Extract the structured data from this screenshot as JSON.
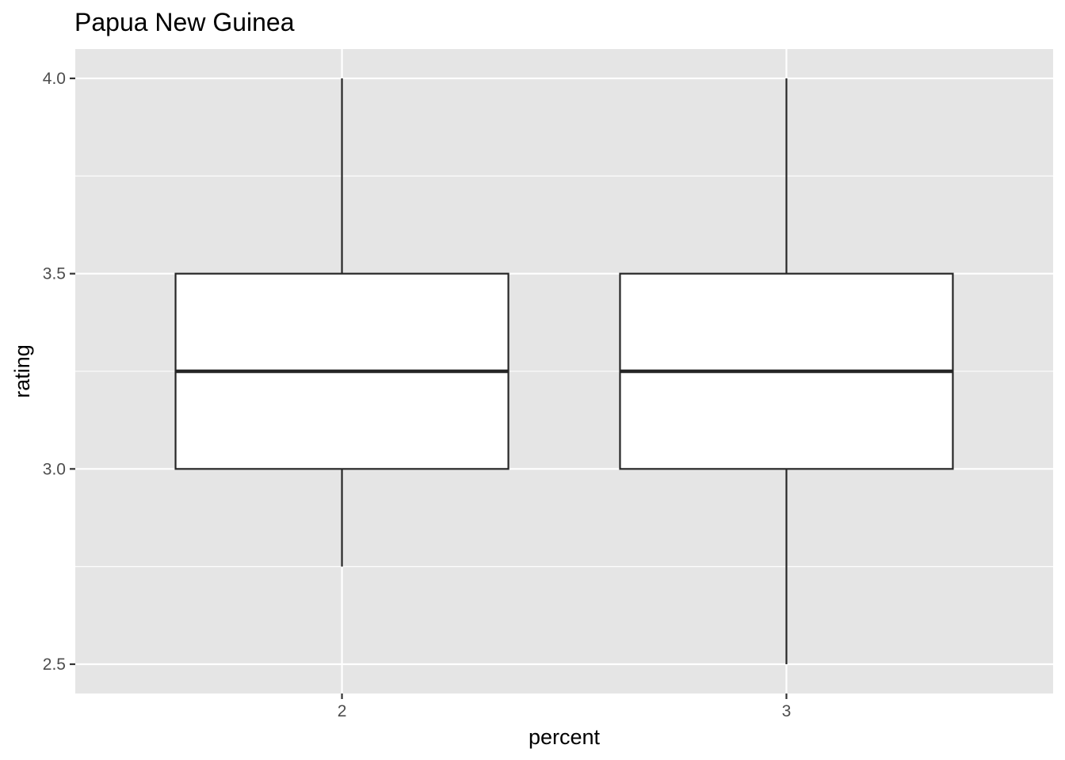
{
  "chart_data": {
    "type": "boxplot",
    "title": "Papua New Guinea",
    "xlabel": "percent",
    "ylabel": "rating",
    "categories": [
      "2",
      "3"
    ],
    "boxes": [
      {
        "category": "2",
        "whisker_low": 2.75,
        "q1": 3.0,
        "median": 3.25,
        "q3": 3.5,
        "whisker_high": 4.0
      },
      {
        "category": "3",
        "whisker_low": 2.5,
        "q1": 3.0,
        "median": 3.25,
        "q3": 3.5,
        "whisker_high": 4.0
      }
    ],
    "yticks": [
      2.5,
      3.0,
      3.5,
      4.0
    ],
    "ytick_labels": [
      "2.5",
      "3.0",
      "3.5",
      "4.0"
    ],
    "ylim": [
      2.425,
      4.075
    ],
    "grid": true,
    "legend": "none",
    "colors": {
      "panel_background": "#e5e5e5",
      "grid": "#ffffff",
      "box_fill": "#ffffff",
      "box_stroke": "#262626",
      "tick_mark": "#333333"
    }
  }
}
